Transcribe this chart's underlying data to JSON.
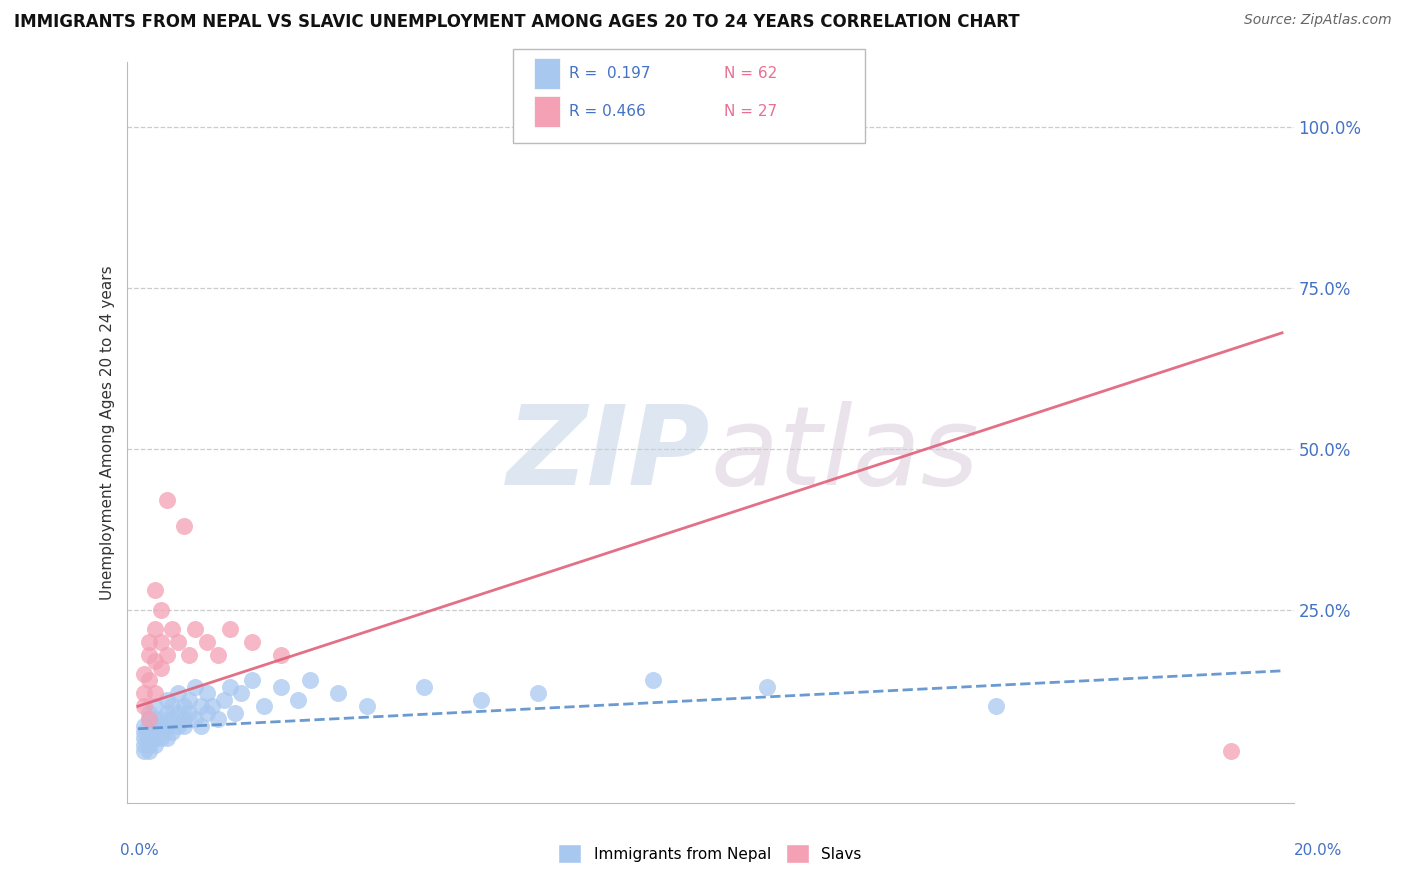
{
  "title": "IMMIGRANTS FROM NEPAL VS SLAVIC UNEMPLOYMENT AMONG AGES 20 TO 24 YEARS CORRELATION CHART",
  "source": "Source: ZipAtlas.com",
  "ylabel": "Unemployment Among Ages 20 to 24 years",
  "xlim": [
    0.0,
    0.2
  ],
  "ylim": [
    -0.05,
    1.1
  ],
  "yticks": [
    0.0,
    0.25,
    0.5,
    0.75,
    1.0
  ],
  "ytick_labels": [
    "",
    "25.0%",
    "50.0%",
    "75.0%",
    "100.0%"
  ],
  "series1_color": "#a8c8f0",
  "series2_color": "#f4a0b5",
  "trendline1_color": "#5b8fcc",
  "trendline2_color": "#e0607a",
  "watermark_zip": "ZIP",
  "watermark_atlas": "atlas",
  "nepal_x": [
    0.001,
    0.001,
    0.001,
    0.001,
    0.001,
    0.002,
    0.002,
    0.002,
    0.002,
    0.002,
    0.002,
    0.002,
    0.003,
    0.003,
    0.003,
    0.003,
    0.003,
    0.003,
    0.004,
    0.004,
    0.004,
    0.004,
    0.005,
    0.005,
    0.005,
    0.005,
    0.006,
    0.006,
    0.006,
    0.007,
    0.007,
    0.007,
    0.008,
    0.008,
    0.008,
    0.009,
    0.009,
    0.01,
    0.01,
    0.011,
    0.011,
    0.012,
    0.012,
    0.013,
    0.014,
    0.015,
    0.016,
    0.017,
    0.018,
    0.02,
    0.022,
    0.025,
    0.028,
    0.03,
    0.035,
    0.04,
    0.05,
    0.06,
    0.07,
    0.09,
    0.11,
    0.15
  ],
  "nepal_y": [
    0.05,
    0.04,
    0.07,
    0.03,
    0.06,
    0.05,
    0.03,
    0.08,
    0.06,
    0.04,
    0.07,
    0.09,
    0.06,
    0.08,
    0.04,
    0.05,
    0.07,
    0.1,
    0.08,
    0.05,
    0.07,
    0.06,
    0.09,
    0.07,
    0.05,
    0.11,
    0.08,
    0.06,
    0.1,
    0.07,
    0.09,
    0.12,
    0.1,
    0.07,
    0.08,
    0.09,
    0.11,
    0.08,
    0.13,
    0.1,
    0.07,
    0.09,
    0.12,
    0.1,
    0.08,
    0.11,
    0.13,
    0.09,
    0.12,
    0.14,
    0.1,
    0.13,
    0.11,
    0.14,
    0.12,
    0.1,
    0.13,
    0.11,
    0.12,
    0.14,
    0.13,
    0.1
  ],
  "slavic_x": [
    0.001,
    0.001,
    0.001,
    0.002,
    0.002,
    0.002,
    0.002,
    0.003,
    0.003,
    0.003,
    0.003,
    0.004,
    0.004,
    0.004,
    0.005,
    0.005,
    0.006,
    0.007,
    0.008,
    0.009,
    0.01,
    0.012,
    0.014,
    0.016,
    0.02,
    0.025,
    0.191
  ],
  "slavic_y": [
    0.12,
    0.15,
    0.1,
    0.18,
    0.14,
    0.2,
    0.08,
    0.22,
    0.17,
    0.28,
    0.12,
    0.2,
    0.16,
    0.25,
    0.42,
    0.18,
    0.22,
    0.2,
    0.38,
    0.18,
    0.22,
    0.2,
    0.18,
    0.22,
    0.2,
    0.18,
    0.03
  ],
  "trendline1_x": [
    0.0,
    0.2
  ],
  "trendline1_y": [
    0.065,
    0.155
  ],
  "trendline2_x": [
    0.0,
    0.2
  ],
  "trendline2_y": [
    0.1,
    0.68
  ]
}
